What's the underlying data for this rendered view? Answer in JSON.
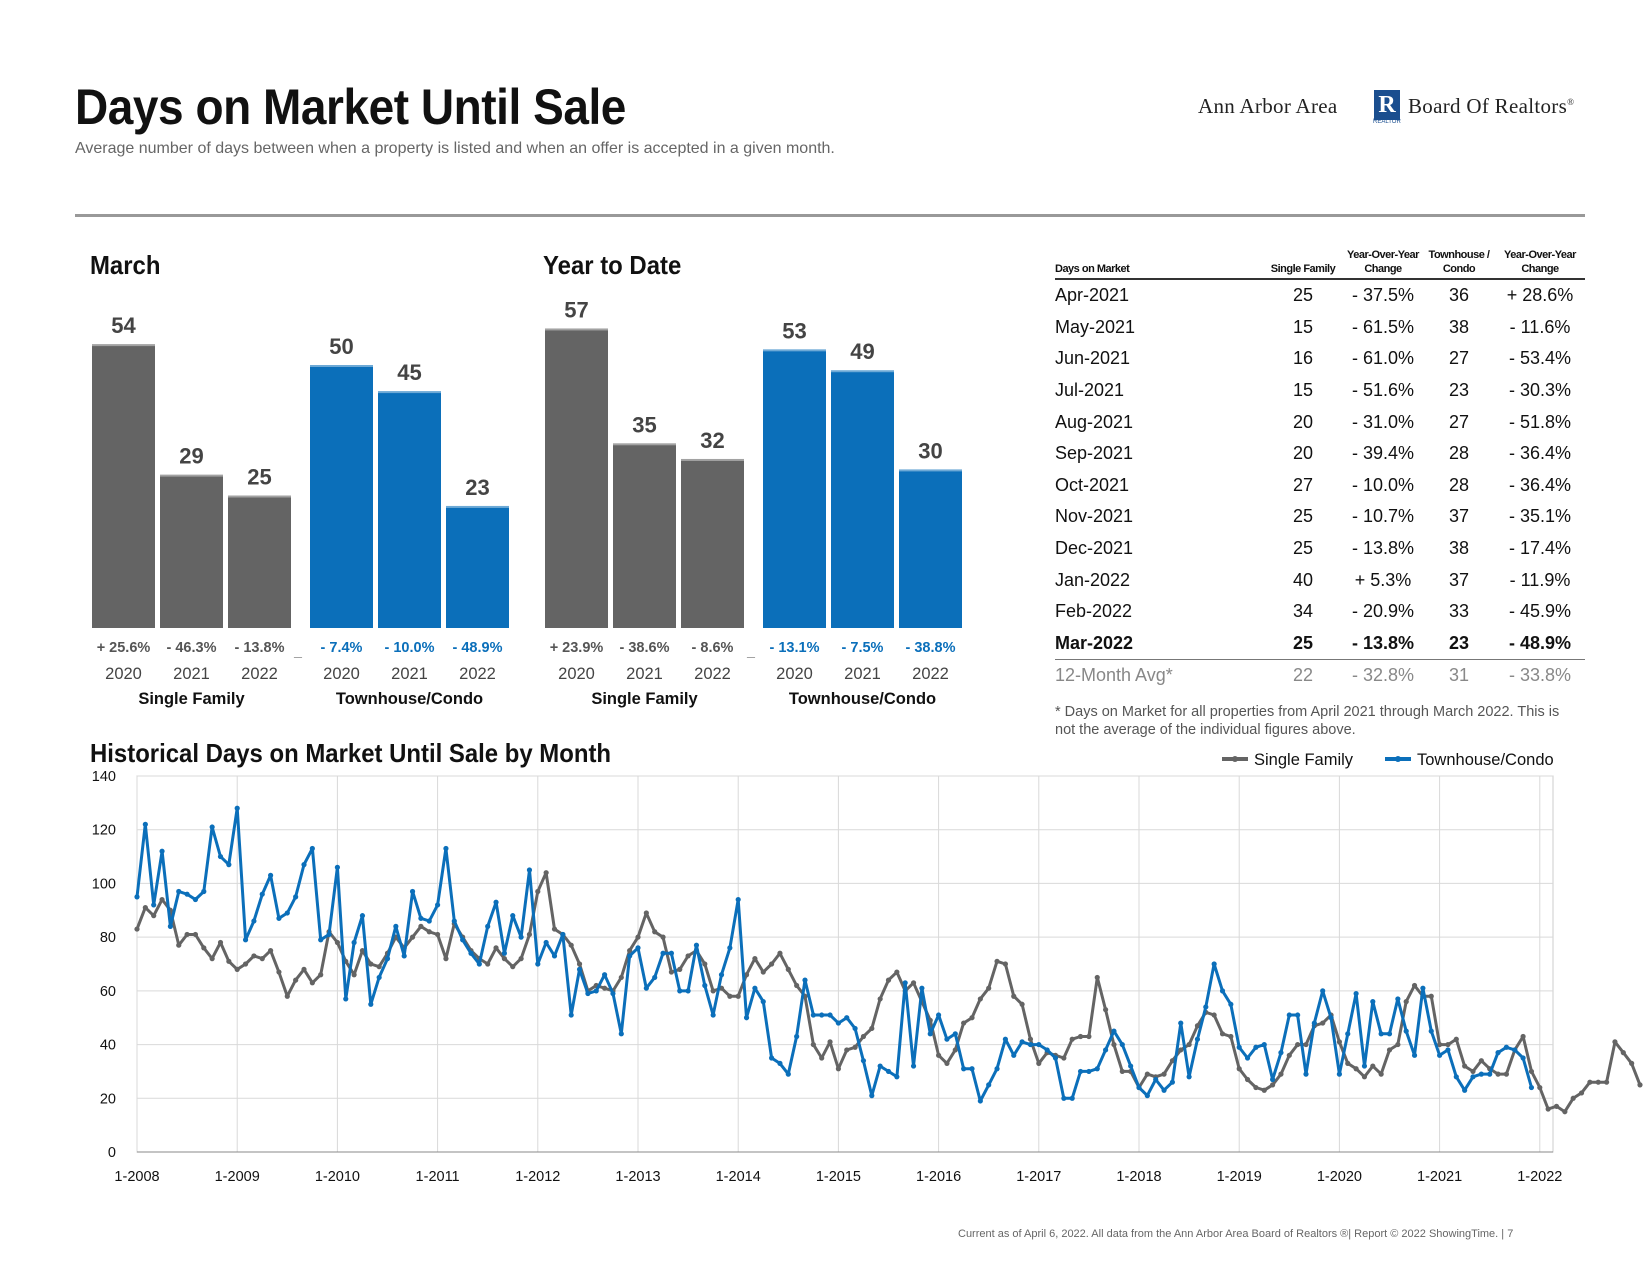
{
  "header": {
    "title": "Days on Market Until Sale",
    "subtitle": "Average number of days between when a property is listed and when an offer is accepted in a given month.",
    "logo_left": "Ann Arbor Area",
    "logo_right": "Board Of Realtors",
    "logo_mark": "R",
    "logo_realtor": "REALTOR"
  },
  "colors": {
    "single_family": "#646464",
    "townhouse": "#0b6fba"
  },
  "chart_data": [
    {
      "type": "bar",
      "title": "March",
      "groups": [
        {
          "name": "Single Family",
          "categories": [
            "2020",
            "2021",
            "2022"
          ],
          "values": [
            54,
            29,
            25
          ],
          "changes": [
            "+ 25.6%",
            "- 46.3%",
            "- 13.8%"
          ]
        },
        {
          "name": "Townhouse/Condo",
          "categories": [
            "2020",
            "2021",
            "2022"
          ],
          "values": [
            50,
            45,
            23
          ],
          "changes": [
            "- 7.4%",
            "- 10.0%",
            "- 48.9%"
          ]
        }
      ]
    },
    {
      "type": "bar",
      "title": "Year to Date",
      "groups": [
        {
          "name": "Single Family",
          "categories": [
            "2020",
            "2021",
            "2022"
          ],
          "values": [
            57,
            35,
            32
          ],
          "changes": [
            "+ 23.9%",
            "- 38.6%",
            "- 8.6%"
          ]
        },
        {
          "name": "Townhouse/Condo",
          "categories": [
            "2020",
            "2021",
            "2022"
          ],
          "values": [
            53,
            49,
            30
          ],
          "changes": [
            "- 13.1%",
            "- 7.5%",
            "- 38.8%"
          ]
        }
      ]
    },
    {
      "type": "table",
      "columns": [
        "Days on Market",
        "Single Family",
        "Year-Over-Year Change",
        "Townhouse / Condo",
        "Year-Over-Year Change"
      ],
      "rows": [
        [
          "Apr-2021",
          "25",
          "- 37.5%",
          "36",
          "+ 28.6%"
        ],
        [
          "May-2021",
          "15",
          "- 61.5%",
          "38",
          "- 11.6%"
        ],
        [
          "Jun-2021",
          "16",
          "- 61.0%",
          "27",
          "- 53.4%"
        ],
        [
          "Jul-2021",
          "15",
          "- 51.6%",
          "23",
          "- 30.3%"
        ],
        [
          "Aug-2021",
          "20",
          "- 31.0%",
          "27",
          "- 51.8%"
        ],
        [
          "Sep-2021",
          "20",
          "- 39.4%",
          "28",
          "- 36.4%"
        ],
        [
          "Oct-2021",
          "27",
          "- 10.0%",
          "28",
          "- 36.4%"
        ],
        [
          "Nov-2021",
          "25",
          "- 10.7%",
          "37",
          "- 35.1%"
        ],
        [
          "Dec-2021",
          "25",
          "- 13.8%",
          "38",
          "- 17.4%"
        ],
        [
          "Jan-2022",
          "40",
          "+ 5.3%",
          "37",
          "- 11.9%"
        ],
        [
          "Feb-2022",
          "34",
          "- 20.9%",
          "33",
          "- 45.9%"
        ],
        [
          "Mar-2022",
          "25",
          "- 13.8%",
          "23",
          "- 48.9%"
        ]
      ],
      "avg_row": [
        "12-Month Avg*",
        "22",
        "- 32.8%",
        "31",
        "- 33.8%"
      ],
      "footnote": "* Days on Market for all properties from April 2021 through March 2022. This is not the average of the individual figures above."
    },
    {
      "type": "line",
      "title": "Historical Days on Market Until Sale by Month",
      "ylim": [
        0,
        140
      ],
      "yticks": [
        0,
        20,
        40,
        60,
        80,
        100,
        120,
        140
      ],
      "xticks": [
        "1-2008",
        "1-2009",
        "1-2010",
        "1-2011",
        "1-2012",
        "1-2013",
        "1-2014",
        "1-2015",
        "1-2016",
        "1-2017",
        "1-2018",
        "1-2019",
        "1-2020",
        "1-2021",
        "1-2022"
      ],
      "legend": [
        "Single Family",
        "Townhouse/Condo"
      ],
      "series": [
        {
          "name": "Single Family",
          "values": [
            83,
            91,
            88,
            94,
            90,
            77,
            81,
            81,
            76,
            72,
            78,
            71,
            68,
            70,
            73,
            72,
            75,
            67,
            58,
            64,
            68,
            63,
            66,
            82,
            78,
            71,
            66,
            75,
            70,
            69,
            74,
            80,
            76,
            80,
            84,
            82,
            81,
            72,
            85,
            80,
            75,
            72,
            70,
            76,
            72,
            69,
            72,
            81,
            97,
            104,
            83,
            81,
            77,
            70,
            60,
            62,
            61,
            60,
            65,
            75,
            80,
            89,
            82,
            80,
            67,
            68,
            73,
            75,
            70,
            60,
            61,
            58,
            58,
            66,
            72,
            67,
            70,
            74,
            68,
            62,
            58,
            40,
            35,
            41,
            31,
            38,
            39,
            43,
            46,
            57,
            64,
            67,
            60,
            63,
            56,
            49,
            36,
            33,
            38,
            48,
            50,
            57,
            61,
            71,
            70,
            58,
            55,
            42,
            33,
            37,
            36,
            35,
            42,
            43,
            43,
            65,
            53,
            40,
            30,
            30,
            24,
            29,
            28,
            29,
            34,
            38,
            40,
            47,
            52,
            51,
            44,
            43,
            31,
            27,
            24,
            23,
            25,
            29,
            36,
            40,
            40,
            47,
            48,
            51,
            41,
            33,
            31,
            28,
            32,
            29,
            38,
            40,
            56,
            62,
            58,
            58,
            40,
            40,
            42,
            32,
            30,
            34,
            31,
            29,
            29,
            38,
            43,
            30,
            24,
            16,
            17,
            15,
            20,
            22,
            26,
            26,
            26,
            41,
            37,
            33,
            25
          ]
        },
        {
          "name": "Townhouse/Condo",
          "values": [
            95,
            122,
            92,
            112,
            84,
            97,
            96,
            94,
            97,
            121,
            110,
            107,
            128,
            79,
            86,
            96,
            103,
            87,
            89,
            95,
            107,
            113,
            79,
            81,
            106,
            57,
            78,
            88,
            55,
            65,
            72,
            84,
            73,
            97,
            87,
            86,
            92,
            113,
            86,
            79,
            74,
            70,
            84,
            93,
            74,
            88,
            80,
            105,
            70,
            78,
            73,
            81,
            51,
            68,
            59,
            60,
            66,
            59,
            44,
            73,
            76,
            61,
            65,
            74,
            74,
            60,
            60,
            77,
            62,
            51,
            66,
            76,
            94,
            50,
            61,
            56,
            35,
            33,
            29,
            43,
            64,
            51,
            51,
            51,
            48,
            50,
            46,
            34,
            21,
            32,
            30,
            28,
            63,
            32,
            61,
            44,
            51,
            42,
            44,
            31,
            31,
            19,
            25,
            31,
            42,
            36,
            41,
            40,
            40,
            38,
            35,
            20,
            20,
            30,
            30,
            31,
            38,
            45,
            40,
            32,
            24,
            21,
            27,
            23,
            26,
            48,
            28,
            42,
            54,
            70,
            60,
            55,
            39,
            35,
            39,
            40,
            27,
            37,
            51,
            51,
            29,
            48,
            60,
            50,
            29,
            44,
            59,
            32,
            56,
            44,
            44,
            57,
            45,
            36,
            61,
            45,
            36,
            38,
            28,
            23,
            28,
            29,
            29,
            37,
            39,
            38,
            35,
            24
          ]
        }
      ]
    }
  ],
  "labels": {
    "single_family": "Single Family",
    "townhouse": "Townhouse/Condo"
  },
  "footer": "Current as of April 6, 2022. All data from the Ann Arbor Area Board of Realtors ®| Report © 2022 ShowingTime.  |  7"
}
